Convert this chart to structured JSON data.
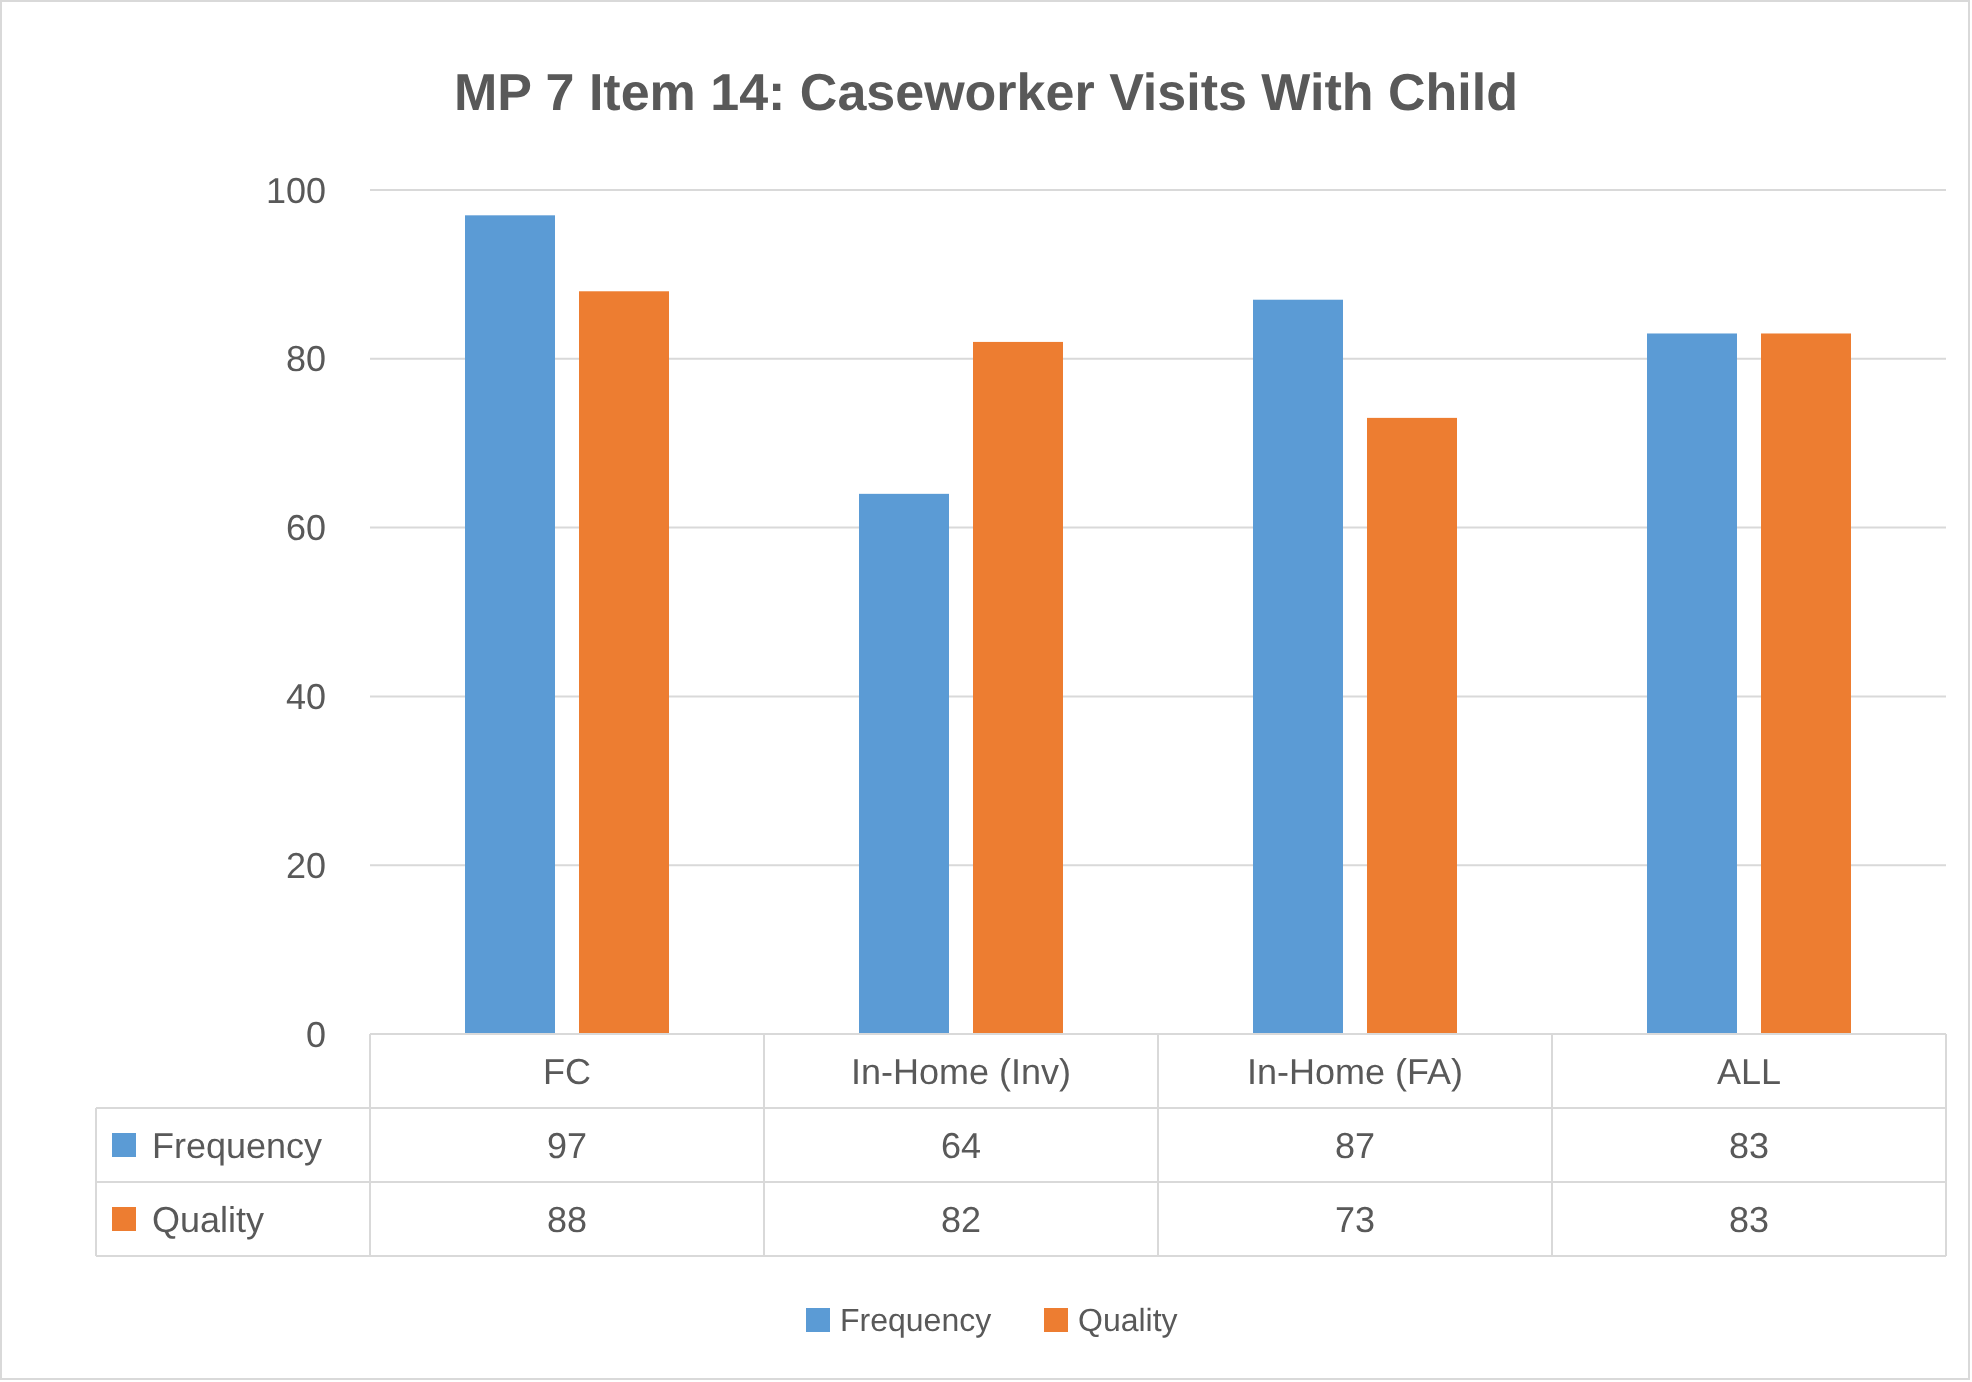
{
  "chart_data": {
    "type": "bar",
    "title": "MP 7  Item 14: Caseworker Visits With Child",
    "categories": [
      "FC",
      "In-Home (Inv)",
      "In-Home (FA)",
      "ALL"
    ],
    "series": [
      {
        "name": "Frequency",
        "color": "#5b9bd5",
        "values": [
          97,
          64,
          87,
          83
        ]
      },
      {
        "name": "Quality",
        "color": "#ed7d31",
        "values": [
          88,
          82,
          73,
          83
        ]
      }
    ],
    "ylim": [
      0,
      100
    ],
    "yticks": [
      0,
      20,
      40,
      60,
      80,
      100
    ],
    "grid": "y",
    "legend": "bottom",
    "data_labels": true
  }
}
